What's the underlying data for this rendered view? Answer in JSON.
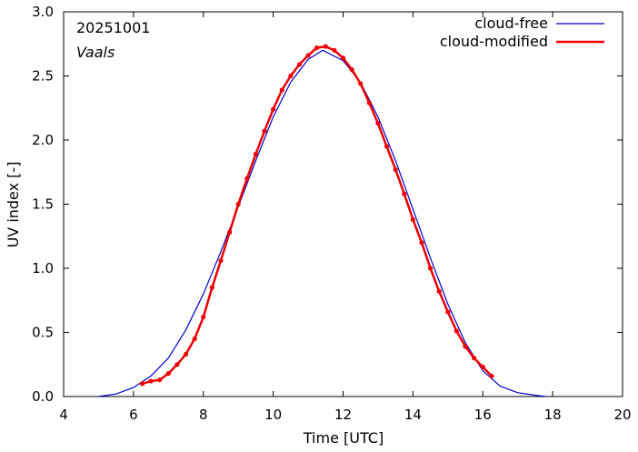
{
  "chart_data": {
    "type": "line",
    "annotations": [
      "20251001",
      "Vaals"
    ],
    "xlabel": "Time  [UTC]",
    "ylabel": "UV index  [-]",
    "xlim": [
      4,
      20
    ],
    "ylim": [
      0.0,
      3.0
    ],
    "xticks": [
      4,
      6,
      8,
      10,
      12,
      14,
      16,
      18,
      20
    ],
    "xtick_labels": [
      "4",
      "6",
      "8",
      "10",
      "12",
      "14",
      "16",
      "18",
      "20"
    ],
    "yticks": [
      0.0,
      0.5,
      1.0,
      1.5,
      2.0,
      2.5,
      3.0
    ],
    "ytick_labels": [
      "0.0",
      "0.5",
      "1.0",
      "1.5",
      "2.0",
      "2.5",
      "3.0"
    ],
    "grid": false,
    "legend_position": "top-right",
    "colors": {
      "cloud_free": "#0000cc",
      "cloud_modified": "#ee0000"
    },
    "series": [
      {
        "name": "cloud-free",
        "style": "line",
        "x": [
          5.0,
          5.5,
          6.0,
          6.5,
          7.0,
          7.5,
          8.0,
          8.5,
          9.0,
          9.5,
          10.0,
          10.5,
          11.0,
          11.42,
          12.0,
          12.5,
          13.0,
          13.5,
          14.0,
          14.5,
          15.0,
          15.5,
          16.0,
          16.5,
          17.0,
          17.5,
          17.8
        ],
        "y": [
          0.0,
          0.02,
          0.07,
          0.16,
          0.3,
          0.52,
          0.8,
          1.13,
          1.48,
          1.84,
          2.18,
          2.45,
          2.63,
          2.7,
          2.62,
          2.45,
          2.18,
          1.84,
          1.46,
          1.08,
          0.72,
          0.42,
          0.2,
          0.08,
          0.03,
          0.01,
          0.0
        ]
      },
      {
        "name": "cloud-modified",
        "style": "line-points",
        "x": [
          6.25,
          6.5,
          6.75,
          7.0,
          7.25,
          7.5,
          7.75,
          8.0,
          8.25,
          8.5,
          8.75,
          9.0,
          9.25,
          9.5,
          9.75,
          10.0,
          10.25,
          10.5,
          10.75,
          11.0,
          11.25,
          11.5,
          11.75,
          12.0,
          12.25,
          12.5,
          12.75,
          13.0,
          13.25,
          13.5,
          13.75,
          14.0,
          14.25,
          14.5,
          14.75,
          15.0,
          15.25,
          15.5,
          15.75,
          16.0,
          16.25
        ],
        "y": [
          0.1,
          0.12,
          0.13,
          0.18,
          0.25,
          0.33,
          0.45,
          0.62,
          0.85,
          1.06,
          1.28,
          1.5,
          1.7,
          1.89,
          2.07,
          2.24,
          2.39,
          2.5,
          2.59,
          2.66,
          2.72,
          2.73,
          2.7,
          2.64,
          2.55,
          2.44,
          2.29,
          2.13,
          1.95,
          1.77,
          1.58,
          1.38,
          1.2,
          1.0,
          0.82,
          0.66,
          0.51,
          0.39,
          0.3,
          0.23,
          0.16
        ]
      }
    ]
  }
}
